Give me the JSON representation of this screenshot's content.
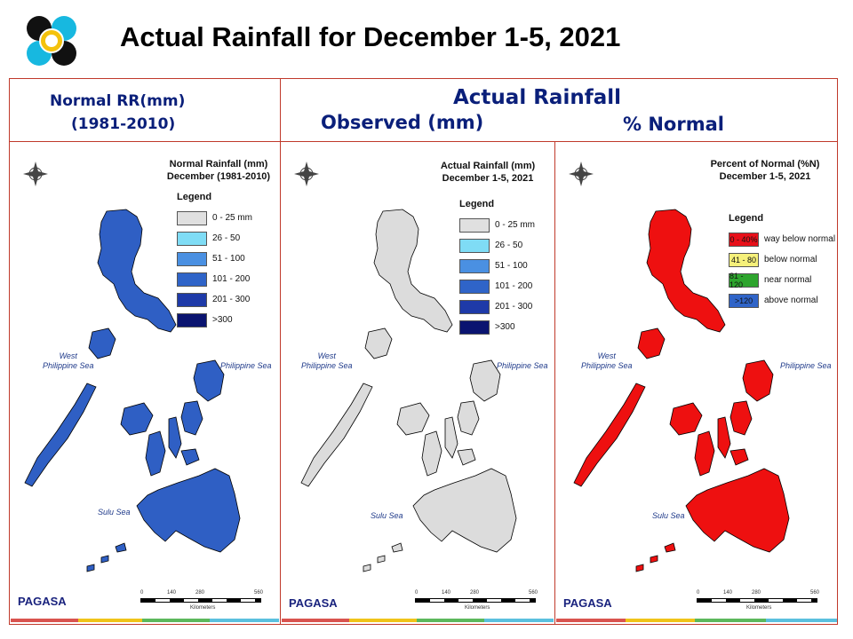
{
  "title": "Actual Rainfall for December 1-5, 2021",
  "headers": {
    "normal_line1": "Normal RR(mm)",
    "normal_line2": "(1981-2010)",
    "actual": "Actual Rainfall",
    "observed": "Observed (mm)",
    "percent": "% Normal"
  },
  "maps": [
    {
      "title_line1": "Normal Rainfall (mm)",
      "title_line2": "December (1981-2010)",
      "legend_title": "Legend",
      "legend": [
        {
          "label": "0 - 25 mm",
          "color": "#e0e0e0"
        },
        {
          "label": "26 - 50",
          "color": "#7fdcf5"
        },
        {
          "label": "51 - 100",
          "color": "#4a90e2"
        },
        {
          "label": "101 - 200",
          "color": "#2f64c8"
        },
        {
          "label": "201 - 300",
          "color": "#1e3aa8"
        },
        {
          "label": ">300",
          "color": "#0a1470"
        }
      ],
      "sea_west_1": "West",
      "sea_west_2": "Philippine Sea",
      "sea_east": "Philippine Sea",
      "sea_south": "Sulu Sea",
      "scale": [
        "0",
        "140",
        "280",
        "560"
      ],
      "scale_unit": "Kilometers",
      "fill": "#2f5fc4"
    },
    {
      "title_line1": "Actual Rainfall (mm)",
      "title_line2": "December 1-5, 2021",
      "legend_title": "Legend",
      "legend": [
        {
          "label": "0 - 25 mm",
          "color": "#e0e0e0"
        },
        {
          "label": "26 - 50",
          "color": "#7fdcf5"
        },
        {
          "label": "51 - 100",
          "color": "#4a90e2"
        },
        {
          "label": "101 - 200",
          "color": "#2f64c8"
        },
        {
          "label": "201 - 300",
          "color": "#1e3aa8"
        },
        {
          "label": ">300",
          "color": "#0a1470"
        }
      ],
      "sea_west_1": "West",
      "sea_west_2": "Philippine Sea",
      "sea_east": "Philippine Sea",
      "sea_south": "Sulu Sea",
      "scale": [
        "0",
        "140",
        "280",
        "560"
      ],
      "scale_unit": "Kilometers",
      "fill": "#dcdcdc"
    },
    {
      "title_line1": "Percent of Normal (%N)",
      "title_line2": "December 1-5, 2021",
      "legend_title": "Legend",
      "legend": [
        {
          "swatch": "0 - 40%",
          "label": "way below normal",
          "color": "#e8101a"
        },
        {
          "swatch": "41 - 80",
          "label": "below normal",
          "color": "#f5f07a"
        },
        {
          "swatch": "81 - 120",
          "label": "near normal",
          "color": "#2ea52e"
        },
        {
          "swatch": ">120",
          "label": "above normal",
          "color": "#2f64c8"
        }
      ],
      "sea_west_1": "West",
      "sea_west_2": "Philippine Sea",
      "sea_east": "Philippine Sea",
      "sea_south": "Sulu Sea",
      "scale": [
        "0",
        "140",
        "280",
        "560"
      ],
      "scale_unit": "Kilometers",
      "fill": "#ee1010"
    }
  ],
  "branding": "PAGASA"
}
